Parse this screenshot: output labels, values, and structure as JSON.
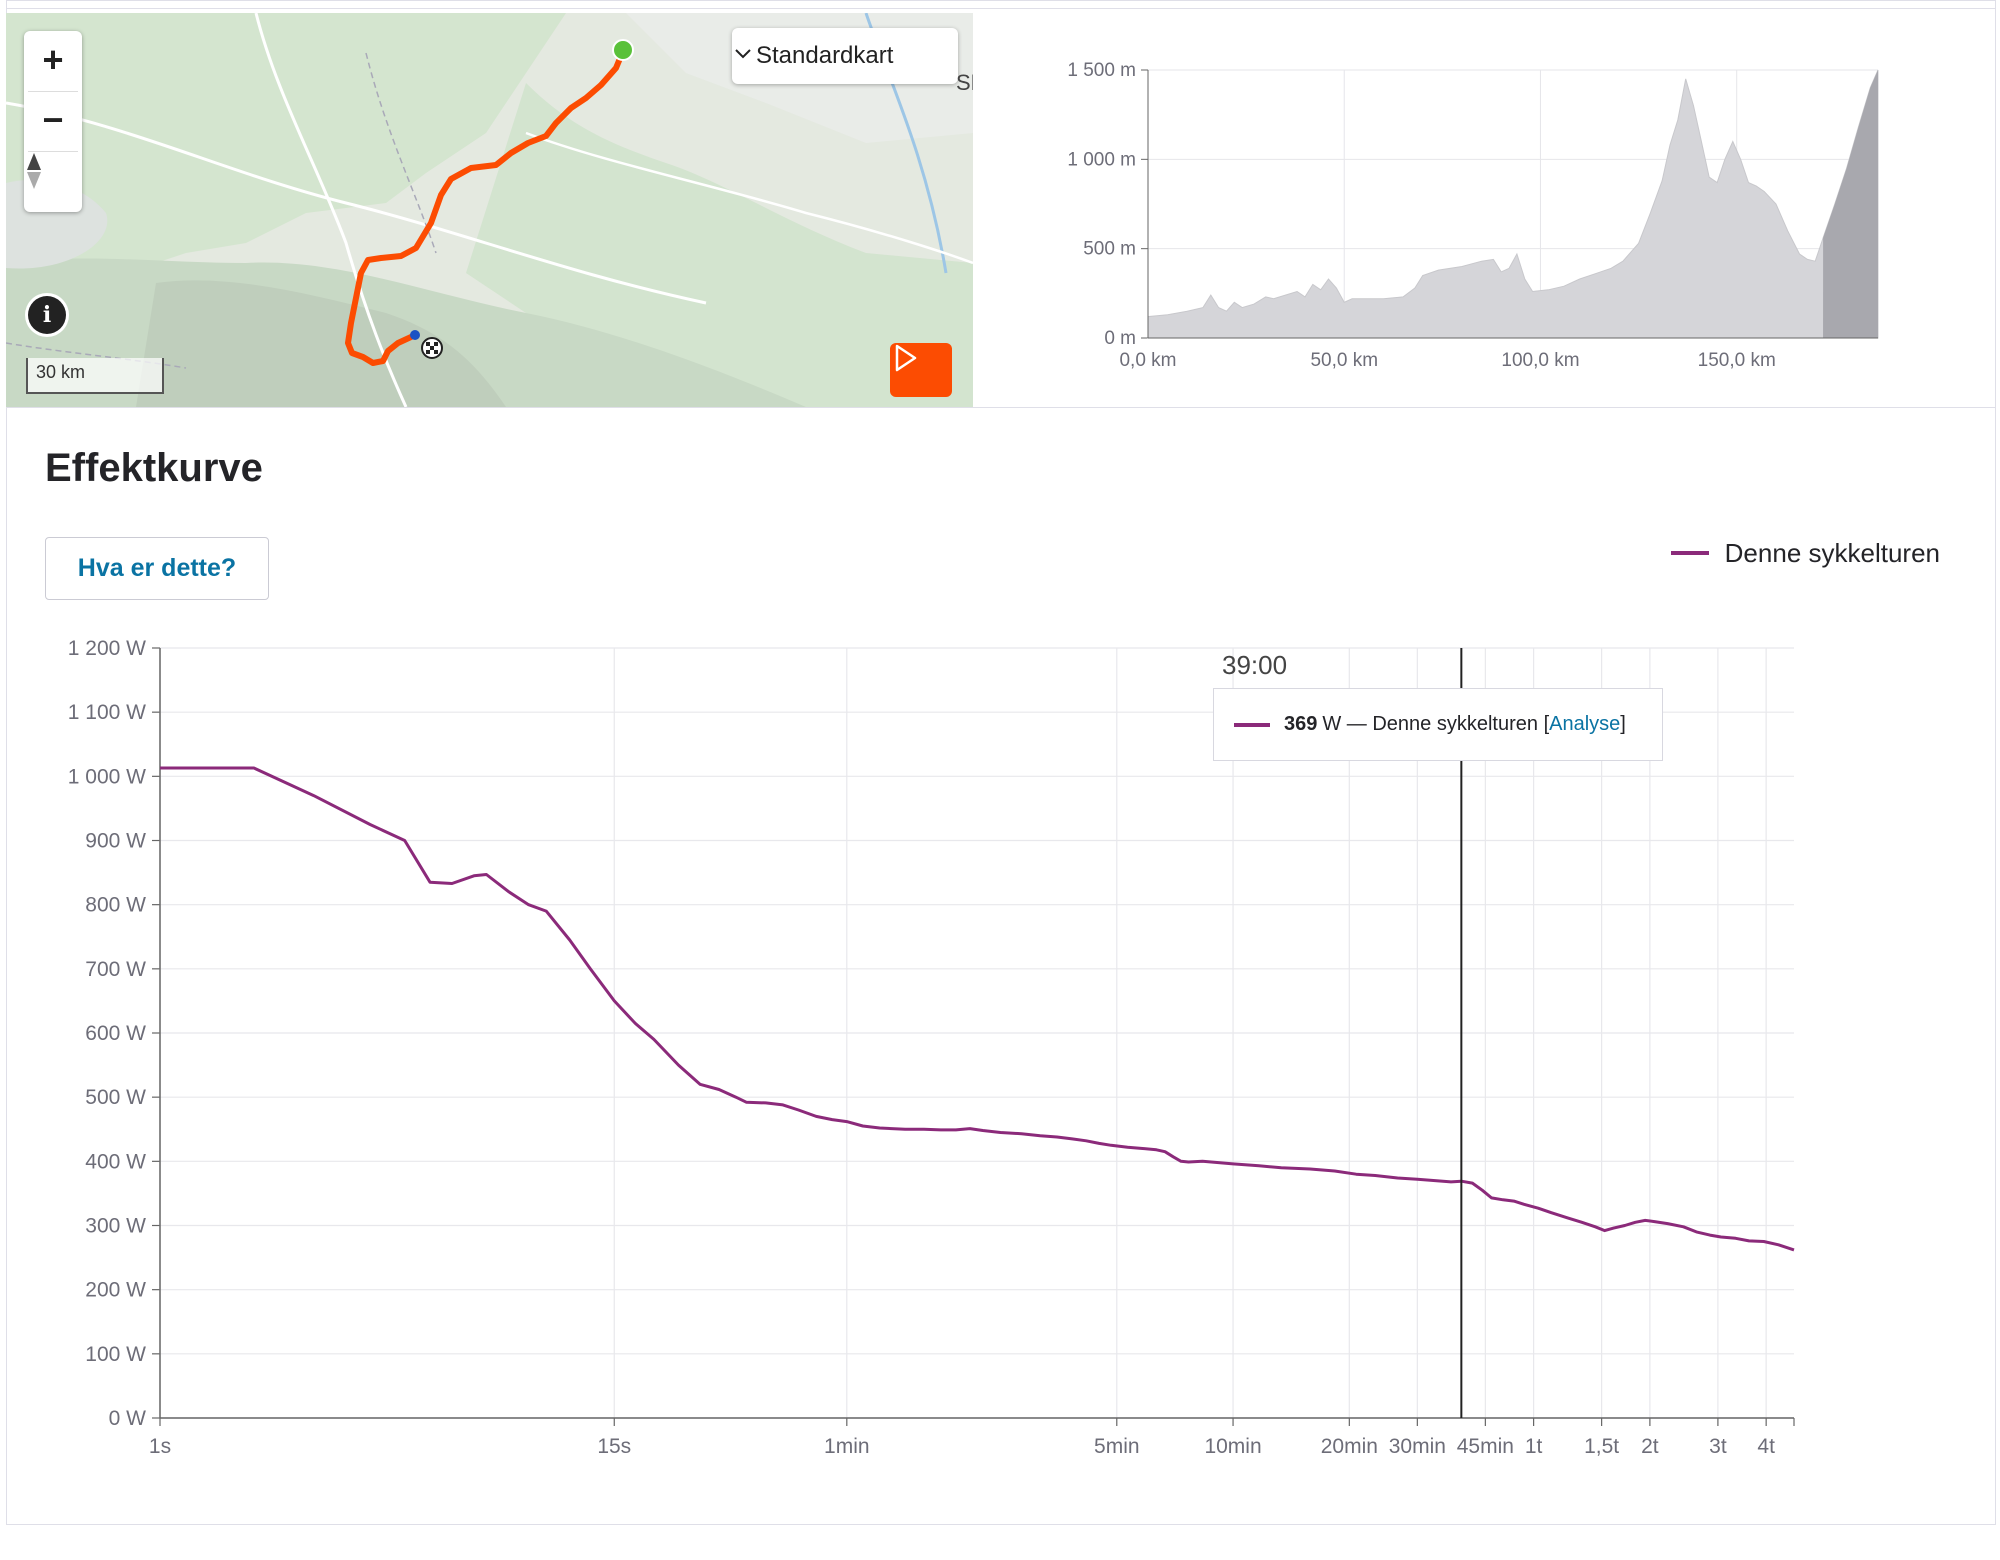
{
  "map": {
    "map_type_label": "Standardkart",
    "scale_label": "30 km",
    "zoom_in_label": "+",
    "zoom_out_label": "−",
    "info_label": "i",
    "route_color": "#fc4c02",
    "start_color": "#5ac13a",
    "partial_label": "SE"
  },
  "elevation": {
    "chart_data": {
      "type": "area",
      "title": "",
      "xlabel": "",
      "ylabel": "",
      "x_unit": "km",
      "y_unit": "m",
      "xlim": [
        0,
        186
      ],
      "ylim": [
        0,
        1500
      ],
      "x_ticks": [
        "0,0 km",
        "50,0 km",
        "100,0 km",
        "150,0 km"
      ],
      "x_tick_values": [
        0,
        50,
        100,
        150
      ],
      "y_ticks": [
        "0 m",
        "500 m",
        "1 000 m",
        "1 500 m"
      ],
      "y_tick_values": [
        0,
        500,
        1000,
        1500
      ],
      "highlight_from_km": 172,
      "points": [
        [
          0,
          120
        ],
        [
          5,
          130
        ],
        [
          10,
          150
        ],
        [
          14,
          170
        ],
        [
          16,
          240
        ],
        [
          18,
          170
        ],
        [
          20,
          150
        ],
        [
          22,
          200
        ],
        [
          24,
          170
        ],
        [
          27,
          190
        ],
        [
          30,
          230
        ],
        [
          32,
          220
        ],
        [
          35,
          240
        ],
        [
          38,
          260
        ],
        [
          40,
          230
        ],
        [
          42,
          300
        ],
        [
          44,
          270
        ],
        [
          46,
          330
        ],
        [
          48,
          280
        ],
        [
          50,
          200
        ],
        [
          52,
          220
        ],
        [
          55,
          220
        ],
        [
          60,
          220
        ],
        [
          65,
          230
        ],
        [
          68,
          280
        ],
        [
          70,
          350
        ],
        [
          74,
          380
        ],
        [
          80,
          400
        ],
        [
          85,
          430
        ],
        [
          88,
          440
        ],
        [
          90,
          370
        ],
        [
          92,
          390
        ],
        [
          94,
          470
        ],
        [
          96,
          330
        ],
        [
          98,
          260
        ],
        [
          102,
          270
        ],
        [
          106,
          290
        ],
        [
          110,
          330
        ],
        [
          114,
          360
        ],
        [
          118,
          390
        ],
        [
          121,
          430
        ],
        [
          125,
          530
        ],
        [
          128,
          700
        ],
        [
          131,
          880
        ],
        [
          133,
          1080
        ],
        [
          135,
          1220
        ],
        [
          137,
          1450
        ],
        [
          139,
          1300
        ],
        [
          141,
          1100
        ],
        [
          143,
          900
        ],
        [
          145,
          870
        ],
        [
          147,
          1000
        ],
        [
          149,
          1100
        ],
        [
          151,
          1000
        ],
        [
          153,
          870
        ],
        [
          155,
          850
        ],
        [
          157,
          820
        ],
        [
          160,
          750
        ],
        [
          163,
          600
        ],
        [
          166,
          470
        ],
        [
          168,
          440
        ],
        [
          170,
          430
        ],
        [
          172,
          560
        ],
        [
          175,
          750
        ],
        [
          178,
          950
        ],
        [
          181,
          1180
        ],
        [
          184,
          1400
        ],
        [
          186,
          1500
        ]
      ]
    }
  },
  "power_curve": {
    "title": "Effektkurve",
    "help_button_label": "Hva er dette?",
    "legend_label": "Denne sykkelturen",
    "tooltip": {
      "time": "39:00",
      "value": "369",
      "unit_series": "W — Denne sykkelturen [",
      "link": "Analyse",
      "close": "]"
    },
    "chart_data": {
      "type": "line",
      "title": "",
      "xlabel": "",
      "ylabel": "",
      "x_unit": "seconds (log scale)",
      "y_unit": "W",
      "ylim": [
        0,
        1200
      ],
      "y_ticks": [
        "0 W",
        "100 W",
        "200 W",
        "300 W",
        "400 W",
        "500 W",
        "600 W",
        "700 W",
        "800 W",
        "900 W",
        "1 000 W",
        "1 100 W",
        "1 200 W"
      ],
      "y_tick_values": [
        0,
        100,
        200,
        300,
        400,
        500,
        600,
        700,
        800,
        900,
        1000,
        1100,
        1200
      ],
      "x_ticks": [
        "1s",
        "15s",
        "1min",
        "5min",
        "10min",
        "20min",
        "30min",
        "45min",
        "1t",
        "1,5t",
        "2t",
        "3t",
        "4t"
      ],
      "x_tick_values": [
        1,
        15,
        60,
        300,
        600,
        1200,
        1800,
        2700,
        3600,
        5400,
        7200,
        10800,
        14400
      ],
      "x_max": 17000,
      "cursor_x": 2340,
      "grid": true,
      "series": [
        {
          "name": "Denne sykkelturen",
          "color": "#8b2a7a",
          "points": [
            [
              1,
              1013
            ],
            [
              1.75,
              1013
            ],
            [
              2.5,
              970
            ],
            [
              3.5,
              925
            ],
            [
              4.3,
              900
            ],
            [
              5,
              835
            ],
            [
              5.7,
              833
            ],
            [
              6.5,
              845
            ],
            [
              7,
              847
            ],
            [
              8,
              820
            ],
            [
              9,
              800
            ],
            [
              10,
              790
            ],
            [
              11.5,
              745
            ],
            [
              13,
              700
            ],
            [
              15,
              650
            ],
            [
              17,
              615
            ],
            [
              19,
              590
            ],
            [
              22,
              550
            ],
            [
              25,
              520
            ],
            [
              28,
              512
            ],
            [
              31,
              500
            ],
            [
              33,
              492
            ],
            [
              37,
              491
            ],
            [
              41,
              488
            ],
            [
              45,
              480
            ],
            [
              50,
              470
            ],
            [
              55,
              465
            ],
            [
              60,
              462
            ],
            [
              66,
              455
            ],
            [
              73,
              452
            ],
            [
              85,
              450
            ],
            [
              95,
              450
            ],
            [
              105,
              449
            ],
            [
              115,
              449
            ],
            [
              125,
              451
            ],
            [
              135,
              448
            ],
            [
              150,
              445
            ],
            [
              170,
              443
            ],
            [
              190,
              440
            ],
            [
              210,
              438
            ],
            [
              230,
              435
            ],
            [
              250,
              432
            ],
            [
              270,
              428
            ],
            [
              290,
              425
            ],
            [
              320,
              422
            ],
            [
              350,
              420
            ],
            [
              380,
              418
            ],
            [
              400,
              415
            ],
            [
              420,
              407
            ],
            [
              440,
              400
            ],
            [
              460,
              399
            ],
            [
              500,
              400
            ],
            [
              550,
              398
            ],
            [
              600,
              396
            ],
            [
              700,
              393
            ],
            [
              800,
              390
            ],
            [
              950,
              388
            ],
            [
              1100,
              385
            ],
            [
              1250,
              380
            ],
            [
              1400,
              378
            ],
            [
              1600,
              374
            ],
            [
              1800,
              372
            ],
            [
              2000,
              370
            ],
            [
              2200,
              368
            ],
            [
              2340,
              369
            ],
            [
              2500,
              366
            ],
            [
              2650,
              355
            ],
            [
              2800,
              343
            ],
            [
              3000,
              340
            ],
            [
              3200,
              338
            ],
            [
              3400,
              333
            ],
            [
              3700,
              327
            ],
            [
              4000,
              320
            ],
            [
              4400,
              312
            ],
            [
              4800,
              305
            ],
            [
              5200,
              298
            ],
            [
              5500,
              292
            ],
            [
              5800,
              296
            ],
            [
              6200,
              300
            ],
            [
              6600,
              305
            ],
            [
              7000,
              308
            ],
            [
              7400,
              306
            ],
            [
              8000,
              303
            ],
            [
              8800,
              298
            ],
            [
              9500,
              290
            ],
            [
              10300,
              285
            ],
            [
              11000,
              282
            ],
            [
              12000,
              280
            ],
            [
              13000,
              276
            ],
            [
              14200,
              275
            ],
            [
              15500,
              270
            ],
            [
              17000,
              262
            ]
          ]
        }
      ]
    }
  }
}
